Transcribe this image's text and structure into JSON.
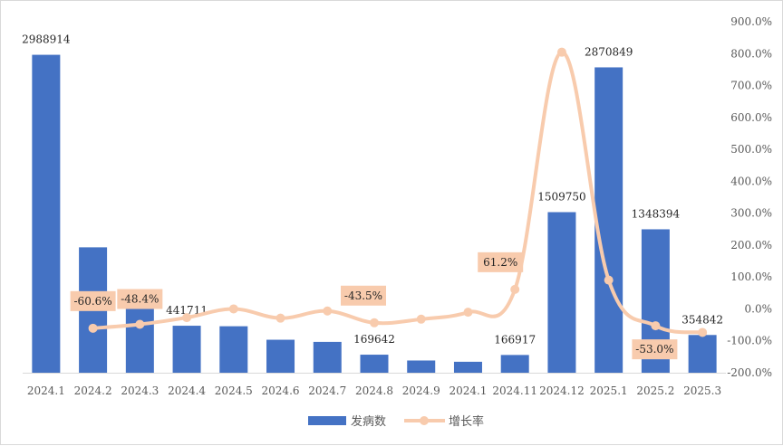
{
  "chart_data": {
    "type": "bar+line",
    "categories": [
      "2024.1",
      "2024.2",
      "2024.3",
      "2024.4",
      "2024.5",
      "2024.6",
      "2024.7",
      "2024.8",
      "2024.9",
      "2024.1",
      "2024.11",
      "2024.12",
      "2025.1",
      "2025.2",
      "2025.3"
    ],
    "series": [
      {
        "name": "发病数",
        "type": "bar",
        "axis": "left",
        "color": "#4472C4",
        "values": [
          2988914,
          1179000,
          608000,
          441711,
          437000,
          310000,
          290000,
          169642,
          115000,
          103000,
          166917,
          1509750,
          2870849,
          1348394,
          354842
        ]
      },
      {
        "name": "增长率",
        "type": "line",
        "axis": "right",
        "unit": "%",
        "color": "#F8CBAD",
        "values": [
          null,
          -60.6,
          -48.4,
          -27.3,
          0.0,
          -29.0,
          -6.5,
          -43.5,
          -32.2,
          -10.4,
          61.2,
          804.5,
          90.2,
          -53.0,
          -73.7
        ]
      }
    ],
    "bar_labels": [
      {
        "index": 0,
        "text": "2988914"
      },
      {
        "index": 3,
        "text": "441711"
      },
      {
        "index": 7,
        "text": "169642"
      },
      {
        "index": 10,
        "text": "166917"
      },
      {
        "index": 11,
        "text": "1509750"
      },
      {
        "index": 12,
        "text": "2870849"
      },
      {
        "index": 13,
        "text": "1348394"
      },
      {
        "index": 14,
        "text": "354842"
      }
    ],
    "line_labels": [
      {
        "index": 1,
        "text": "-60.6%",
        "box_color": "#F8CBAD"
      },
      {
        "index": 2,
        "text": "-48.4%",
        "box_color": "#F8CBAD"
      },
      {
        "index": 7,
        "text": "-43.5%",
        "box_color": "#F8CBAD"
      },
      {
        "index": 10,
        "text": "61.2%",
        "box_color": "#F8CBAD"
      },
      {
        "index": 13,
        "text": "-53.0%",
        "box_color": "#F8CBAD"
      }
    ],
    "y_left": {
      "min": 0,
      "max": 3300000
    },
    "y_right": {
      "min": -200,
      "max": 900,
      "step": 100,
      "tick_labels": [
        "-200.0%",
        "-100.0%",
        "0.0%",
        "100.0%",
        "200.0%",
        "300.0%",
        "400.0%",
        "500.0%",
        "600.0%",
        "700.0%",
        "800.0%",
        "900.0%"
      ]
    },
    "legend": {
      "position": "bottom",
      "items": [
        "发病数",
        "增长率"
      ]
    },
    "title": "",
    "grid": false
  }
}
